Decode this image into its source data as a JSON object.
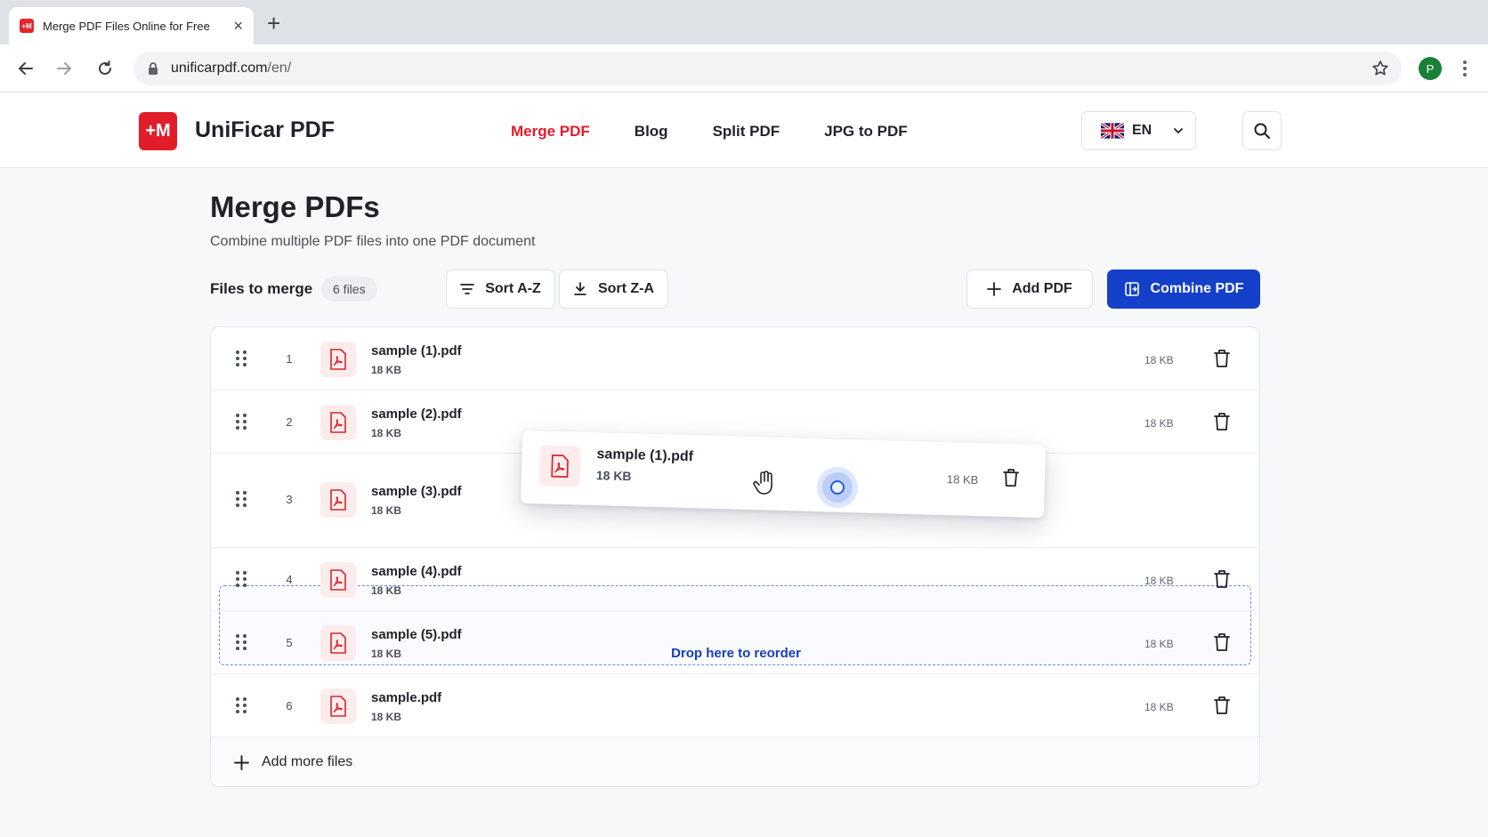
{
  "browser": {
    "tab_title": "Merge PDF Files Online for Free",
    "url_host": "unificarpdf.com",
    "url_path": "/en/",
    "profile_initial": "P"
  },
  "header": {
    "logo_text": "+M",
    "brand": "UniFicar PDF",
    "nav": [
      {
        "label": "Merge PDF",
        "active": true
      },
      {
        "label": "Blog",
        "active": false
      },
      {
        "label": "Split PDF",
        "active": false
      },
      {
        "label": "JPG to PDF",
        "active": false
      }
    ],
    "language": "EN"
  },
  "main": {
    "title": "Merge PDFs",
    "subtitle": "Combine multiple PDF files into one PDF document",
    "files_label": "Files to merge",
    "files_count": "6 files",
    "sort_az": "Sort A-Z",
    "sort_za": "Sort Z-A",
    "add_pdf": "Add PDF",
    "combine_pdf": "Combine PDF",
    "add_more": "Add more files",
    "drop_text": "Drop here to reorder",
    "files": [
      {
        "index": "1",
        "name": "sample (1).pdf",
        "size": "18 KB"
      },
      {
        "index": "2",
        "name": "sample (2).pdf",
        "size": "18 KB"
      },
      {
        "index": "3",
        "name": "sample (3).pdf",
        "size": "18 KB"
      },
      {
        "index": "4",
        "name": "sample (4).pdf",
        "size": "18 KB"
      },
      {
        "index": "5",
        "name": "sample (5).pdf",
        "size": "18 KB"
      },
      {
        "index": "6",
        "name": "sample.pdf",
        "size": "18 KB"
      }
    ],
    "dragging": {
      "name": "sample (1).pdf",
      "size": "18 KB"
    }
  },
  "colors": {
    "accent_red": "#e11d2a",
    "primary_blue": "#1440c9"
  }
}
